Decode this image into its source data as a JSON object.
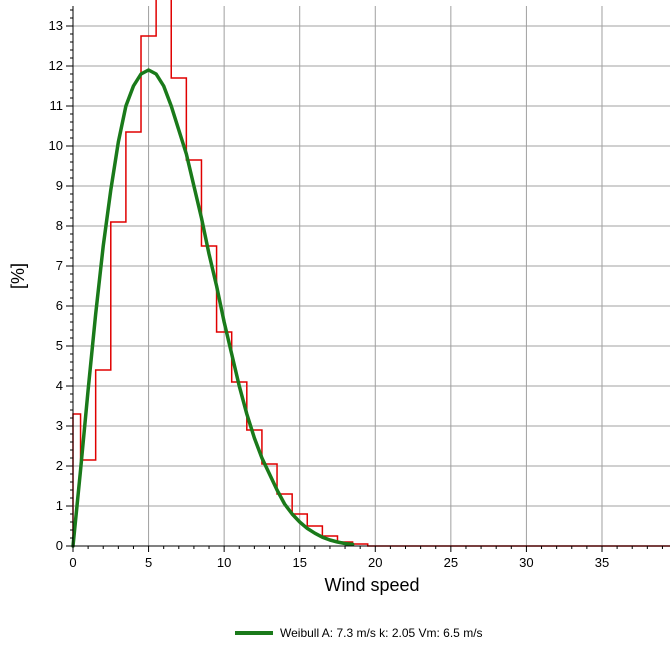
{
  "chart_data": {
    "type": "line",
    "xlabel": "Wind speed",
    "ylabel": "[%]",
    "xlim": [
      0,
      39.5
    ],
    "ylim": [
      0,
      13.5
    ],
    "x_ticks": [
      0,
      5,
      10,
      15,
      20,
      25,
      30,
      35
    ],
    "y_ticks": [
      0,
      1,
      2,
      3,
      4,
      5,
      6,
      7,
      8,
      9,
      10,
      11,
      12,
      13
    ],
    "grid": true,
    "legend_position": "bottom-center",
    "histogram": {
      "color": "#e00000",
      "bin_edges": [
        0,
        0.5,
        1.5,
        2.5,
        3.5,
        4.5,
        5.5,
        6.5,
        7.5,
        8.5,
        9.5,
        10.5,
        11.5,
        12.5,
        13.5,
        14.5,
        15.5,
        16.5,
        17.5,
        18.5,
        19.5,
        39.5
      ],
      "values": [
        3.3,
        2.15,
        4.4,
        8.1,
        10.35,
        12.75,
        13.7,
        11.7,
        9.65,
        7.5,
        5.35,
        4.1,
        2.9,
        2.05,
        1.3,
        0.8,
        0.5,
        0.25,
        0.1,
        0.05,
        0.0
      ]
    },
    "series": [
      {
        "name": "Weibull A: 7.3 m/s k: 2.05 Vm: 6.5 m/s",
        "color": "#1a7a1a",
        "A": 7.3,
        "k": 2.05,
        "x": [
          0,
          0.5,
          1,
          1.5,
          2,
          2.5,
          3,
          3.5,
          4,
          4.5,
          5,
          5.5,
          6,
          6.5,
          7,
          7.5,
          8,
          8.5,
          9,
          9.5,
          10,
          10.5,
          11,
          11.5,
          12,
          12.5,
          13,
          13.5,
          14,
          14.5,
          15,
          15.5,
          16,
          16.5,
          17,
          17.5,
          18,
          18.5
        ],
        "y": [
          0,
          1.9,
          3.9,
          5.8,
          7.5,
          8.9,
          10.1,
          11.0,
          11.5,
          11.8,
          11.9,
          11.8,
          11.5,
          11.0,
          10.4,
          9.8,
          9.0,
          8.2,
          7.3,
          6.5,
          5.6,
          4.8,
          4.0,
          3.3,
          2.7,
          2.2,
          1.8,
          1.4,
          1.05,
          0.8,
          0.6,
          0.44,
          0.32,
          0.22,
          0.15,
          0.1,
          0.06,
          0.04
        ]
      }
    ]
  },
  "legend": {
    "label": "Weibull A: 7.3 m/s k: 2.05 Vm: 6.5 m/s"
  }
}
